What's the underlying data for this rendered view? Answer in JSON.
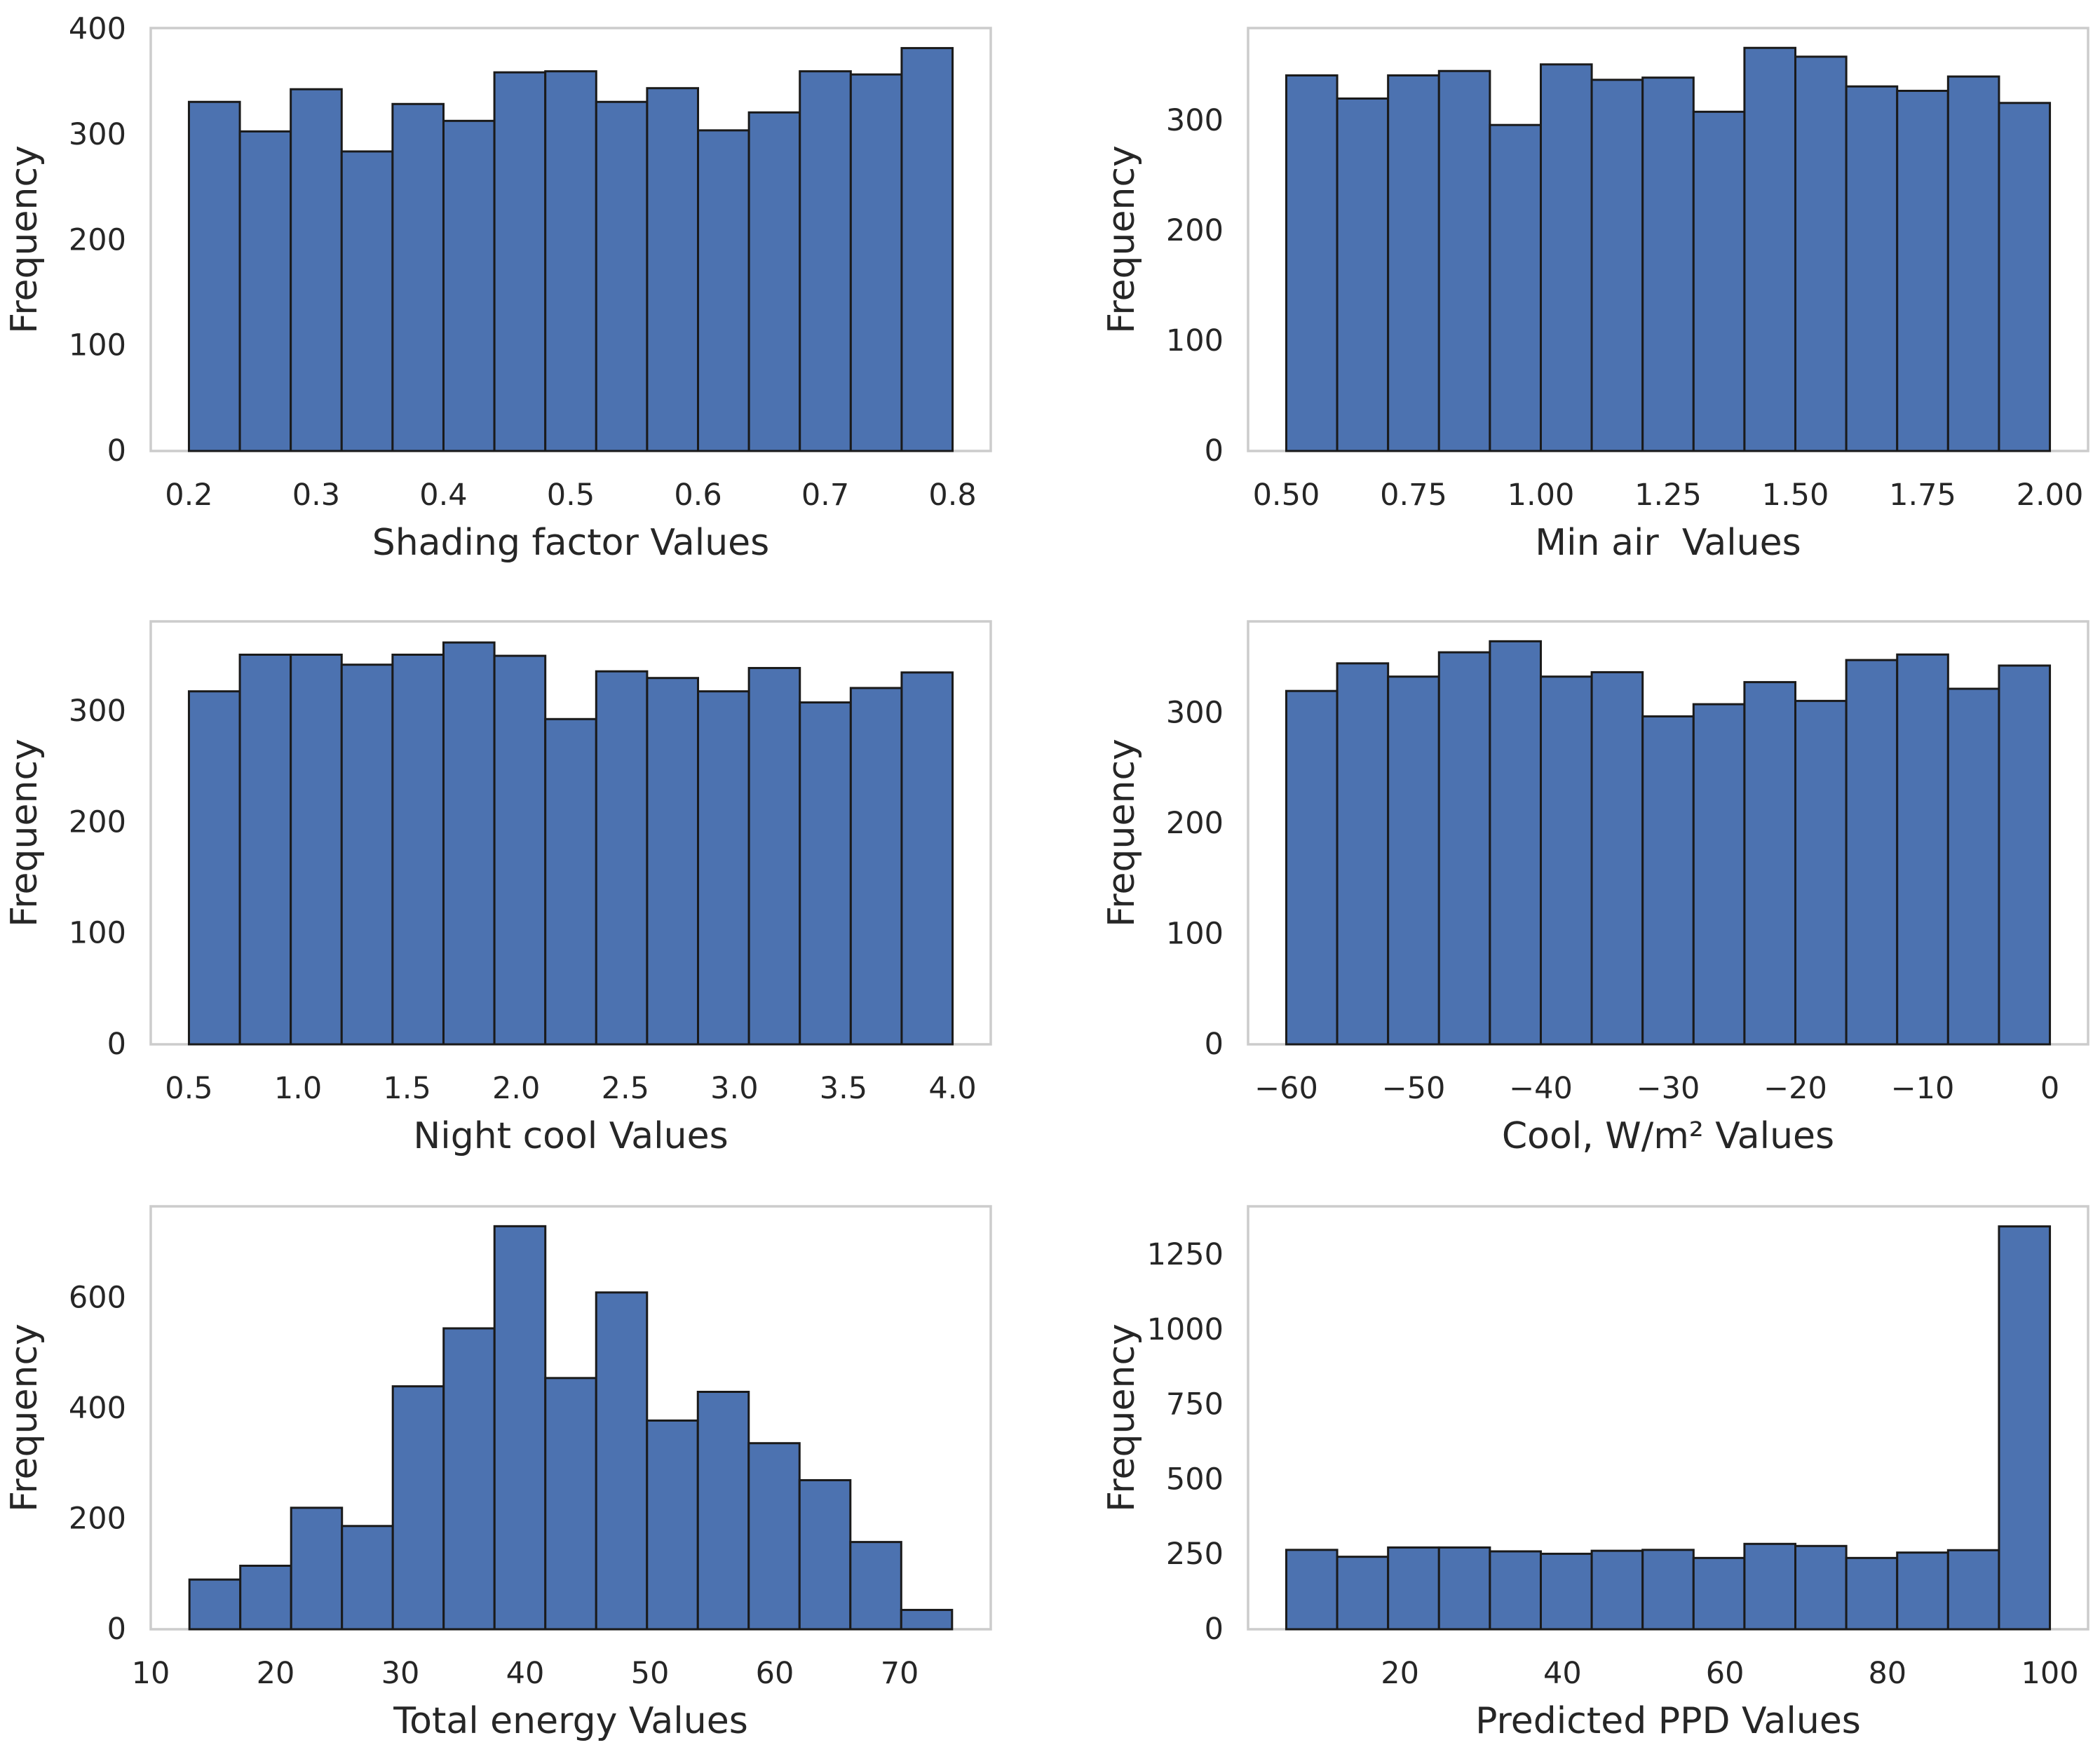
{
  "figure": {
    "background": "#ffffff",
    "rows": 3,
    "columns": 2
  },
  "style": {
    "bar_fill": "#4C72B0",
    "bar_edge": "#1a1a1a",
    "frame_color": "#cccccc",
    "text_color": "#262626"
  },
  "chart_data": [
    {
      "type": "bar",
      "subtype": "histogram",
      "title": "",
      "xlabel": "Shading factor Values",
      "ylabel": "Frequency",
      "bin_start": 0.2,
      "bin_end": 0.8,
      "values": [
        331,
        303,
        343,
        284,
        329,
        313,
        359,
        360,
        331,
        344,
        304,
        321,
        360,
        357,
        382
      ],
      "xlim": [
        0.17,
        0.83
      ],
      "ylim": [
        0,
        401
      ],
      "xticks": {
        "values": [
          0.2,
          0.3,
          0.4,
          0.5,
          0.6,
          0.7,
          0.8
        ],
        "labels": [
          "0.2",
          "0.3",
          "0.4",
          "0.5",
          "0.6",
          "0.7",
          "0.8"
        ]
      },
      "yticks": {
        "values": [
          0,
          100,
          200,
          300,
          400
        ],
        "labels": [
          "0",
          "100",
          "200",
          "300",
          "400"
        ]
      },
      "grid": false,
      "legend": null
    },
    {
      "type": "bar",
      "subtype": "histogram",
      "title": "",
      "xlabel": "Min air  Values",
      "ylabel": "Frequency",
      "bin_start": 0.5,
      "bin_end": 2.0,
      "values": [
        341,
        320,
        341,
        345,
        296,
        351,
        337,
        339,
        308,
        366,
        358,
        331,
        327,
        340,
        316
      ],
      "xlim": [
        0.425,
        2.075
      ],
      "ylim": [
        0,
        384
      ],
      "xticks": {
        "values": [
          0.5,
          0.75,
          1.0,
          1.25,
          1.5,
          1.75,
          2.0
        ],
        "labels": [
          "0.50",
          "0.75",
          "1.00",
          "1.25",
          "1.50",
          "1.75",
          "2.00"
        ]
      },
      "yticks": {
        "values": [
          0,
          100,
          200,
          300
        ],
        "labels": [
          "0",
          "100",
          "200",
          "300"
        ]
      },
      "grid": false,
      "legend": null
    },
    {
      "type": "bar",
      "subtype": "histogram",
      "title": "",
      "xlabel": "Night cool Values",
      "ylabel": "Frequency",
      "bin_start": 0.5,
      "bin_end": 4.0,
      "values": [
        318,
        351,
        351,
        342,
        351,
        362,
        350,
        293,
        336,
        330,
        318,
        339,
        308,
        321,
        335
      ],
      "xlim": [
        0.325,
        4.175
      ],
      "ylim": [
        0,
        381
      ],
      "xticks": {
        "values": [
          0.5,
          1.0,
          1.5,
          2.0,
          2.5,
          3.0,
          3.5,
          4.0
        ],
        "labels": [
          "0.5",
          "1.0",
          "1.5",
          "2.0",
          "2.5",
          "3.0",
          "3.5",
          "4.0"
        ]
      },
      "yticks": {
        "values": [
          0,
          100,
          200,
          300
        ],
        "labels": [
          "0",
          "100",
          "200",
          "300"
        ]
      },
      "grid": false,
      "legend": null
    },
    {
      "type": "bar",
      "subtype": "histogram",
      "title": "",
      "xlabel": "Cool, W/m² Values",
      "ylabel": "Frequency",
      "bin_start": -60,
      "bin_end": 0,
      "values": [
        320,
        345,
        333,
        355,
        365,
        333,
        337,
        297,
        308,
        328,
        311,
        348,
        353,
        322,
        343
      ],
      "xlim": [
        -63,
        3
      ],
      "ylim": [
        0,
        383
      ],
      "xticks": {
        "values": [
          -60,
          -50,
          -40,
          -30,
          -20,
          -10,
          0
        ],
        "labels": [
          "−60",
          "−50",
          "−40",
          "−30",
          "−20",
          "−10",
          "0"
        ]
      },
      "yticks": {
        "values": [
          0,
          100,
          200,
          300
        ],
        "labels": [
          "0",
          "100",
          "200",
          "300"
        ]
      },
      "grid": false,
      "legend": null
    },
    {
      "type": "bar",
      "subtype": "histogram",
      "title": "",
      "xlabel": "Total energy Values",
      "ylabel": "Frequency",
      "bin_start": 13.1,
      "bin_end": 74.2,
      "values": [
        90,
        115,
        220,
        187,
        440,
        545,
        730,
        455,
        610,
        378,
        430,
        337,
        270,
        158,
        35
      ],
      "xlim": [
        10.0,
        77.3
      ],
      "ylim": [
        0,
        766
      ],
      "xticks": {
        "values": [
          10,
          20,
          30,
          40,
          50,
          60,
          70
        ],
        "labels": [
          "10",
          "20",
          "30",
          "40",
          "50",
          "60",
          "70"
        ]
      },
      "yticks": {
        "values": [
          0,
          200,
          400,
          600
        ],
        "labels": [
          "0",
          "200",
          "400",
          "600"
        ]
      },
      "grid": false,
      "legend": null
    },
    {
      "type": "bar",
      "subtype": "histogram",
      "title": "",
      "xlabel": "Predicted PPD Values",
      "ylabel": "Frequency",
      "bin_start": 6.0,
      "bin_end": 100.0,
      "values": [
        265,
        242,
        273,
        273,
        260,
        252,
        262,
        265,
        238,
        285,
        278,
        238,
        256,
        264,
        1345
      ],
      "xlim": [
        1.3,
        104.7
      ],
      "ylim": [
        0,
        1412
      ],
      "xticks": {
        "values": [
          20,
          40,
          60,
          80,
          100
        ],
        "labels": [
          "20",
          "40",
          "60",
          "80",
          "100"
        ]
      },
      "yticks": {
        "values": [
          0,
          250,
          500,
          750,
          1000,
          1250
        ],
        "labels": [
          "0",
          "250",
          "500",
          "750",
          "1000",
          "1250"
        ]
      },
      "grid": false,
      "legend": null
    }
  ]
}
